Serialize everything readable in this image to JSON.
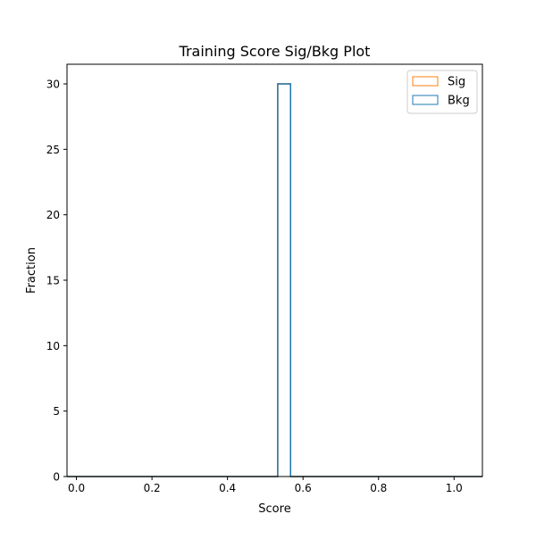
{
  "chart_data": {
    "type": "histogram",
    "title": "Training Score Sig/Bkg Plot",
    "xlabel": "Score",
    "ylabel": "Fraction",
    "xlim": [
      -0.025,
      1.075
    ],
    "ylim": [
      0,
      31.5
    ],
    "x_ticks": [
      0.0,
      0.2,
      0.4,
      0.6,
      0.8,
      1.0
    ],
    "x_tick_labels": [
      "0.0",
      "0.2",
      "0.4",
      "0.6",
      "0.8",
      "1.0"
    ],
    "y_ticks": [
      0,
      5,
      10,
      15,
      20,
      25,
      30
    ],
    "y_tick_labels": [
      "0",
      "5",
      "10",
      "15",
      "20",
      "25",
      "30"
    ],
    "grid": false,
    "legend_position": "top-right",
    "series": [
      {
        "name": "Sig",
        "color": "#ff7f0e",
        "histtype": "step",
        "bin_edges": [
          0.533,
          0.567
        ],
        "values": [
          30
        ]
      },
      {
        "name": "Bkg",
        "color": "#1f77b4",
        "histtype": "step",
        "bin_edges": [
          0.533,
          0.567
        ],
        "values": [
          30
        ]
      }
    ]
  }
}
